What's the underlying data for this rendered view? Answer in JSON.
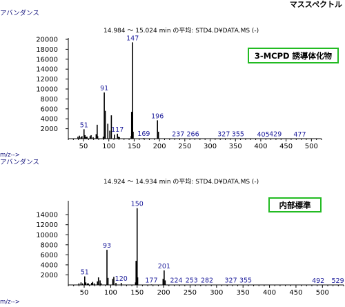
{
  "page_title": "マススペクトル",
  "chart_data": [
    {
      "type": "bar",
      "header": "14.984 ～ 15.024 min の平均: STD4.D¥DATA.MS (-)",
      "ylabel": "アバンダンス",
      "xlabel": "m/z-->",
      "annotation": "3-MCPD 誘導体化物",
      "xlim": [
        20,
        520
      ],
      "ylim": [
        0,
        20000
      ],
      "xticks": [
        50,
        100,
        150,
        200,
        250,
        300,
        350,
        400,
        450,
        500
      ],
      "yticks": [
        2000,
        4000,
        6000,
        8000,
        10000,
        12000,
        14000,
        16000,
        18000,
        20000
      ],
      "x": [
        39,
        42,
        45,
        47,
        51,
        53,
        55,
        57,
        63,
        65,
        69,
        75,
        77,
        78,
        89,
        91,
        93,
        98,
        102,
        105,
        111,
        117,
        119,
        121,
        144,
        145,
        147,
        148,
        169,
        196,
        198,
        237,
        266,
        327,
        355,
        405,
        429,
        477
      ],
      "y": [
        400,
        600,
        300,
        500,
        1900,
        700,
        350,
        400,
        500,
        700,
        300,
        900,
        2800,
        500,
        400,
        9300,
        5600,
        3000,
        1600,
        4700,
        800,
        1000,
        400,
        300,
        500,
        5400,
        19400,
        1400,
        120,
        3700,
        1400,
        50,
        60,
        40,
        40,
        30,
        40,
        30
      ],
      "peak_labels": [
        {
          "mz": 51,
          "text": "51"
        },
        {
          "mz": 91,
          "text": "91"
        },
        {
          "mz": 117,
          "text": "117"
        },
        {
          "mz": 147,
          "text": "147"
        },
        {
          "mz": 169,
          "text": "169"
        },
        {
          "mz": 196,
          "text": "196"
        },
        {
          "mz": 237,
          "text": "237"
        },
        {
          "mz": 266,
          "text": "266"
        },
        {
          "mz": 327,
          "text": "327"
        },
        {
          "mz": 355,
          "text": "355"
        },
        {
          "mz": 405,
          "text": "405"
        },
        {
          "mz": 429,
          "text": "429"
        },
        {
          "mz": 477,
          "text": "477"
        }
      ]
    },
    {
      "type": "bar",
      "header": "14.924 ～ 14.934 min の平均: STD4.D¥DATA.MS (-)",
      "ylabel": "アバンダンス",
      "xlabel": "m/z-->",
      "annotation": "内部標準",
      "xlim": [
        20,
        540
      ],
      "ylim": [
        0,
        16500
      ],
      "xticks": [
        50,
        100,
        150,
        200,
        250,
        300,
        350,
        400,
        450,
        500
      ],
      "yticks": [
        2000,
        4000,
        6000,
        8000,
        10000,
        12000,
        14000
      ],
      "x": [
        40,
        44,
        47,
        51,
        53,
        56,
        58,
        64,
        66,
        69,
        75,
        77,
        80,
        82,
        93,
        95,
        104,
        106,
        110,
        120,
        147,
        148,
        150,
        151,
        177,
        199,
        201,
        203,
        224,
        253,
        282,
        327,
        355,
        492,
        529
      ],
      "y": [
        300,
        500,
        300,
        1700,
        500,
        300,
        300,
        400,
        600,
        300,
        700,
        1500,
        900,
        300,
        7000,
        1400,
        1200,
        1600,
        400,
        400,
        500,
        4800,
        15300,
        1500,
        100,
        1200,
        2900,
        900,
        50,
        50,
        50,
        40,
        40,
        30,
        30
      ],
      "peak_labels": [
        {
          "mz": 51,
          "text": "51"
        },
        {
          "mz": 93,
          "text": "93"
        },
        {
          "mz": 120,
          "text": "120"
        },
        {
          "mz": 150,
          "text": "150"
        },
        {
          "mz": 177,
          "text": "177"
        },
        {
          "mz": 201,
          "text": "201"
        },
        {
          "mz": 224,
          "text": "224"
        },
        {
          "mz": 253,
          "text": "253"
        },
        {
          "mz": 282,
          "text": "282"
        },
        {
          "mz": 327,
          "text": "327"
        },
        {
          "mz": 355,
          "text": "355"
        },
        {
          "mz": 492,
          "text": "492"
        },
        {
          "mz": 529,
          "text": "529"
        }
      ]
    }
  ],
  "colors": {
    "axis": "#000000",
    "bar": "#000000",
    "label": "#1a1a9a",
    "annotation_border": "#22bb22"
  }
}
